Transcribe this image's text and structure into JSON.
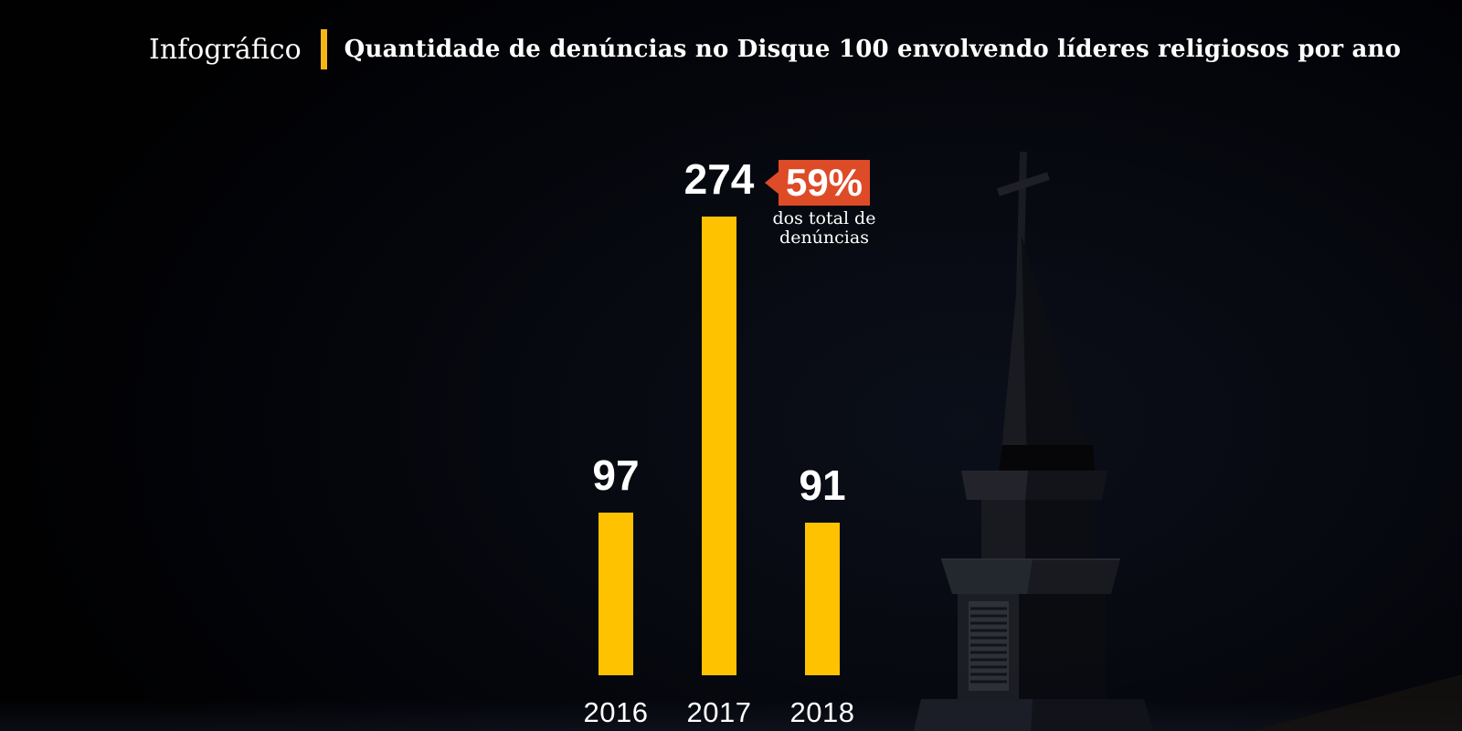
{
  "header": {
    "kicker": "Infográfico",
    "title": "Quantidade de denúncias no Disque 100 envolvendo líderes religiosos por ano"
  },
  "chart_data": {
    "type": "bar",
    "title": "Quantidade de denúncias no Disque 100 envolvendo líderes religiosos por ano",
    "categories": [
      "2016",
      "2017",
      "2018"
    ],
    "values": [
      97,
      274,
      91
    ],
    "ylim": [
      0,
      274
    ],
    "grid": false,
    "legend": "none",
    "orientation": "vertical",
    "bar_color": "#FFC200",
    "value_label_color": "#FFFFFF",
    "annotation": {
      "target_category": "2017",
      "badge_text": "59%",
      "caption_lines": [
        "dos total de",
        "denúncias"
      ],
      "badge_color": "#DE4B27",
      "text_color": "#FFFFFF"
    }
  },
  "colors": {
    "background": "#05070D",
    "bar_yellow": "#FFC200",
    "divider_yellow": "#F5B517",
    "badge_orange": "#DE4B27",
    "text_white": "#FFFFFF"
  },
  "background_art": {
    "description": "faint night photo of a church steeple with a cross, right side"
  }
}
